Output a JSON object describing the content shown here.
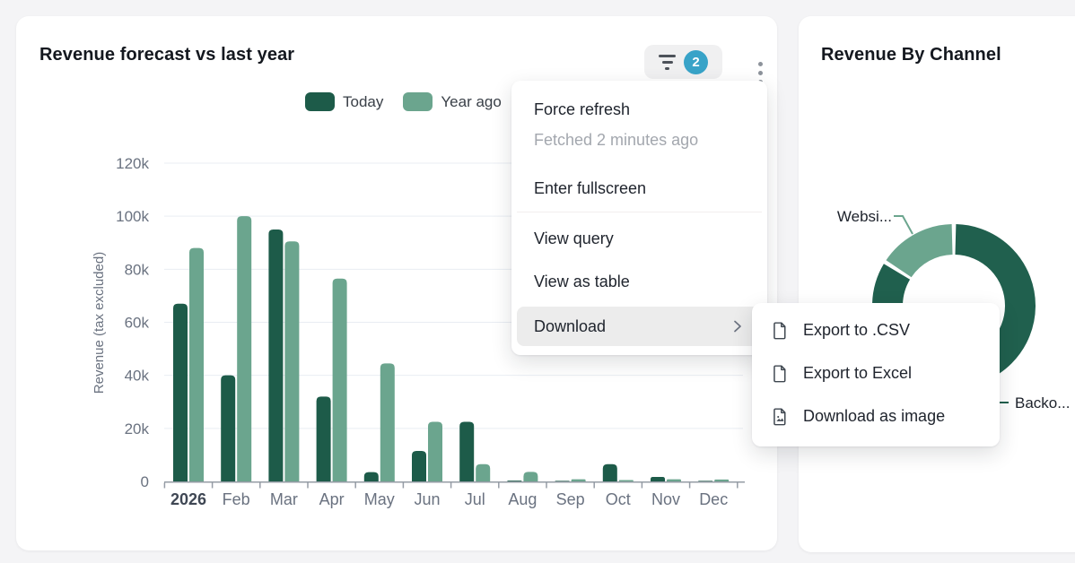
{
  "left_card": {
    "title": "Revenue forecast vs last year",
    "filter": {
      "badge_count": "2"
    }
  },
  "right_card": {
    "title": "Revenue By Channel"
  },
  "menu": {
    "force_refresh": "Force refresh",
    "fetched": "Fetched 2 minutes ago",
    "enter_fullscreen": "Enter fullscreen",
    "view_query": "View query",
    "view_as_table": "View as table",
    "download": "Download"
  },
  "submenu": {
    "export_csv": "Export to .CSV",
    "export_excel": "Export to Excel",
    "download_image": "Download as image"
  },
  "colors": {
    "dark_green": "#1d5b49",
    "light_green": "#6ba58e",
    "donut_dark": "#20604e",
    "badge_blue": "#38a3c8"
  },
  "chart_data": [
    {
      "type": "bar",
      "title": "Revenue forecast vs last year",
      "xlabel": "",
      "ylabel": "Revenue (tax excluded)",
      "ylim": [
        0,
        120000
      ],
      "yticks": [
        0,
        20000,
        40000,
        60000,
        80000,
        100000,
        120000
      ],
      "ytick_labels": [
        "0",
        "20k",
        "40k",
        "60k",
        "80k",
        "100k",
        "120k"
      ],
      "grid": true,
      "legend_position": "top",
      "categories": [
        "2026",
        "Feb",
        "Mar",
        "Apr",
        "May",
        "Jun",
        "Jul",
        "Aug",
        "Sep",
        "Oct",
        "Nov",
        "Dec"
      ],
      "series": [
        {
          "name": "Today",
          "color": "#1d5b49",
          "values": [
            67000,
            40000,
            95000,
            32000,
            3500,
            11500,
            22500,
            300,
            200,
            6500,
            1700,
            200
          ]
        },
        {
          "name": "Year ago",
          "color": "#6ba58e",
          "values": [
            88000,
            100000,
            90500,
            76500,
            44500,
            22500,
            6500,
            3600,
            800,
            500,
            800,
            700
          ]
        }
      ]
    },
    {
      "type": "pie",
      "donut": true,
      "title": "Revenue By Channel",
      "slices": [
        {
          "label": "Backo...",
          "percent": 75,
          "color": "#20604e"
        },
        {
          "label": "",
          "percent": 9,
          "color": "#20604e"
        },
        {
          "label": "Websi...",
          "percent": 16,
          "color": "#6ba58e"
        }
      ]
    }
  ]
}
